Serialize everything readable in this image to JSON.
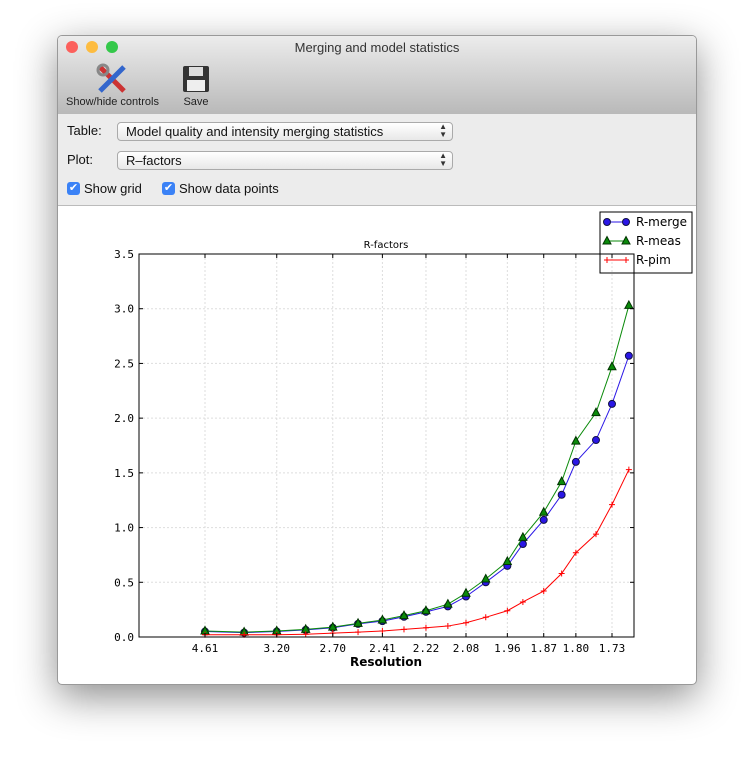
{
  "window": {
    "title": "Merging and model statistics"
  },
  "toolbar": {
    "show_hide_label": "Show/hide controls",
    "save_label": "Save"
  },
  "controls": {
    "table_label": "Table:",
    "table_value": "Model quality and intensity merging statistics",
    "plot_label": "Plot:",
    "plot_value": "R–factors",
    "show_grid_label": "Show grid",
    "show_grid": true,
    "show_points_label": "Show data points",
    "show_points": true
  },
  "chart_data": {
    "type": "line",
    "title": "R-factors",
    "xlabel": "Resolution",
    "ylabel": "",
    "x_scale": "1/d^2",
    "x_tick_labels": [
      "4.61",
      "3.20",
      "2.70",
      "2.41",
      "2.22",
      "2.08",
      "1.96",
      "1.87",
      "1.80",
      "1.73"
    ],
    "x": [
      4.61,
      3.66,
      3.2,
      2.91,
      2.7,
      2.54,
      2.41,
      2.31,
      2.22,
      2.14,
      2.08,
      2.02,
      1.96,
      1.92,
      1.87,
      1.83,
      1.8,
      1.76,
      1.73,
      1.7
    ],
    "ylim": [
      0,
      3.5
    ],
    "y_ticks": [
      "0.0",
      "0.5",
      "1.0",
      "1.5",
      "2.0",
      "2.5",
      "3.0",
      "3.5"
    ],
    "grid": true,
    "legend": "top-right",
    "series": [
      {
        "name": "R-merge",
        "color": "#2a16e6",
        "marker": "circle",
        "values": [
          0.05,
          0.04,
          0.05,
          0.065,
          0.085,
          0.12,
          0.145,
          0.185,
          0.23,
          0.28,
          0.37,
          0.5,
          0.65,
          0.85,
          1.07,
          1.3,
          1.6,
          1.8,
          2.13,
          2.57
        ]
      },
      {
        "name": "R-meas",
        "color": "#0a8a0a",
        "marker": "triangle",
        "values": [
          0.055,
          0.045,
          0.055,
          0.07,
          0.09,
          0.125,
          0.155,
          0.195,
          0.24,
          0.3,
          0.4,
          0.53,
          0.69,
          0.91,
          1.14,
          1.42,
          1.79,
          2.05,
          2.47,
          3.03
        ]
      },
      {
        "name": "R-pim",
        "color": "#ff0000",
        "marker": "plus",
        "values": [
          0.02,
          0.02,
          0.02,
          0.025,
          0.035,
          0.045,
          0.055,
          0.07,
          0.085,
          0.1,
          0.13,
          0.18,
          0.24,
          0.32,
          0.42,
          0.58,
          0.77,
          0.94,
          1.21,
          1.53
        ]
      }
    ]
  }
}
